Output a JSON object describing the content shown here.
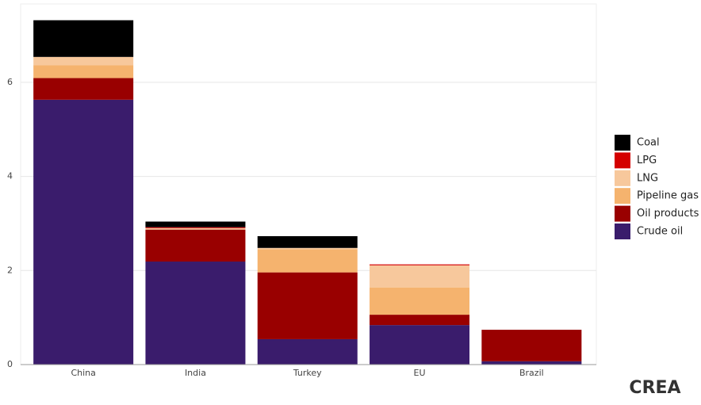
{
  "chart_data": {
    "type": "stacked_bar",
    "categories": [
      "China",
      "India",
      "Turkey",
      "EU",
      "Brazil"
    ],
    "series": [
      {
        "name": "Crude oil",
        "color": "#3a1c6c",
        "values": [
          5.63,
          2.19,
          0.54,
          0.84,
          0.07
        ]
      },
      {
        "name": "Oil products",
        "color": "#990000",
        "values": [
          0.46,
          0.68,
          1.42,
          0.22,
          0.67
        ]
      },
      {
        "name": "Pipeline gas",
        "color": "#f5b36e",
        "values": [
          0.27,
          0,
          0.49,
          0.58,
          0
        ]
      },
      {
        "name": "LNG",
        "color": "#f7c89c",
        "values": [
          0.18,
          0.03,
          0.03,
          0.47,
          0
        ]
      },
      {
        "name": "LPG",
        "color": "#d40000",
        "values": [
          0,
          0.02,
          0,
          0.02,
          0
        ]
      },
      {
        "name": "Coal",
        "color": "#000000",
        "values": [
          0.78,
          0.12,
          0.25,
          0,
          0
        ]
      }
    ],
    "ylim": [
      0,
      7.75
    ],
    "yticks": [
      0,
      2,
      4,
      6
    ],
    "grid": true,
    "legend": "right",
    "logo": "CREA"
  }
}
